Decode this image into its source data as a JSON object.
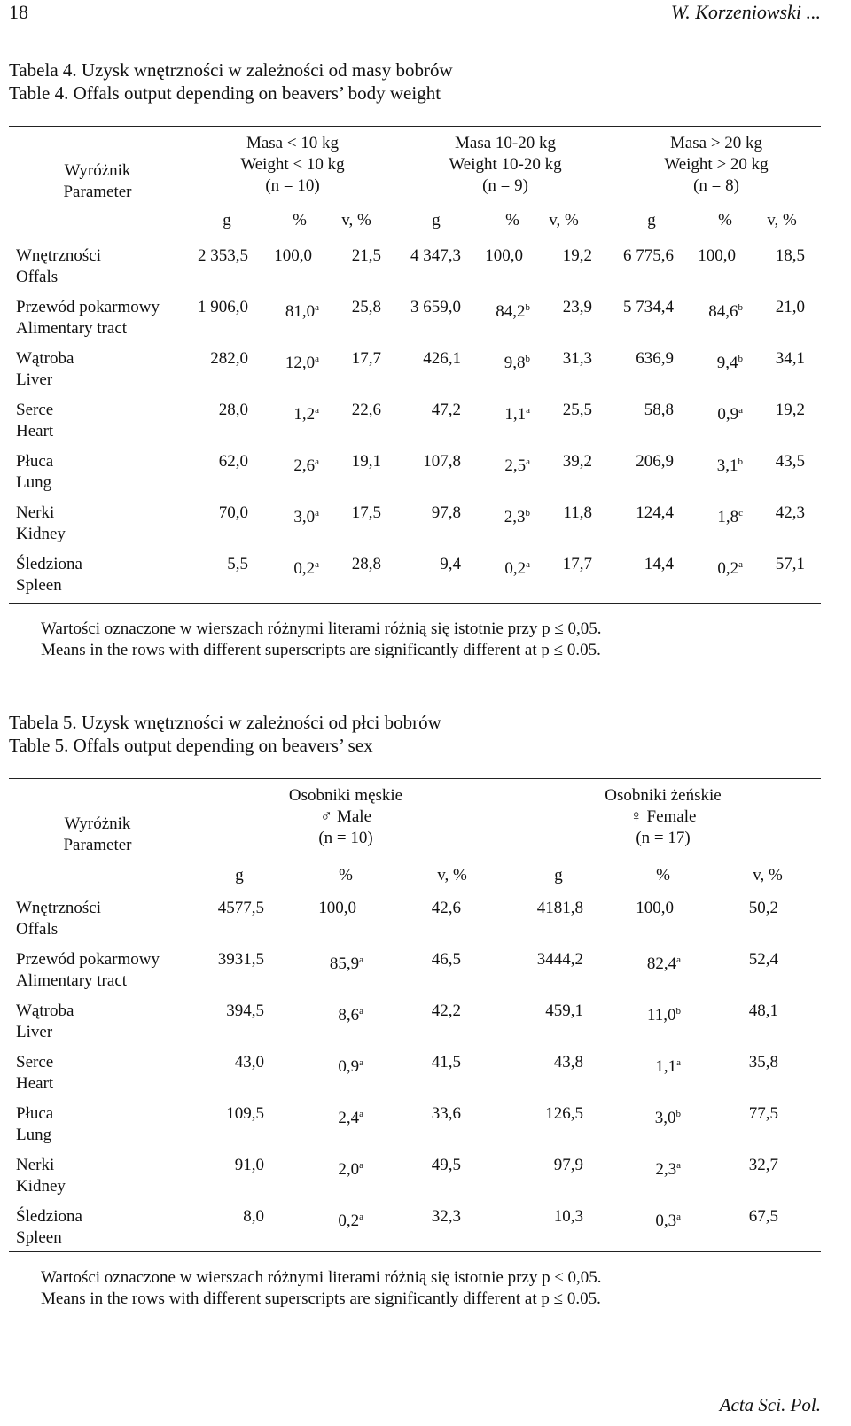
{
  "header": {
    "page_number": "18",
    "running_head": "W. Korzeniowski ..."
  },
  "table4": {
    "caption_pl": "Tabela 4. Uzysk wnętrzności w zależności od masy bobrów",
    "caption_en": "Table 4. Offals output depending on beavers’ body weight",
    "parameter": [
      "Wyróżnik",
      "Parameter"
    ],
    "groups": [
      [
        "Masa < 10 kg",
        "Weight < 10 kg",
        "(n = 10)"
      ],
      [
        "Masa 10-20 kg",
        "Weight 10-20 kg",
        "(n = 9)"
      ],
      [
        "Masa > 20 kg",
        "Weight > 20 kg",
        "(n = 8)"
      ]
    ],
    "subheaders": [
      "g",
      "%",
      "v, %",
      "g",
      "%",
      "v, %",
      "g",
      "%",
      "v, %"
    ],
    "rows": [
      {
        "label": [
          "Wnętrzności",
          "Offals"
        ],
        "cells": [
          "2 353,5",
          "100,0",
          "21,5",
          "4 347,3",
          "100,0",
          "19,2",
          "6 775,6",
          "100,0",
          "18,5"
        ]
      },
      {
        "label": [
          "Przewód pokarmowy",
          "Alimentary tract"
        ],
        "cells": [
          "1 906,0",
          {
            "text": "81,0",
            "sup": "a"
          },
          "25,8",
          "3 659,0",
          {
            "text": "84,2",
            "sup": "b"
          },
          "23,9",
          "5 734,4",
          {
            "text": "84,6",
            "sup": "b"
          },
          "21,0"
        ]
      },
      {
        "label": [
          "Wątroba",
          "Liver"
        ],
        "cells": [
          "282,0",
          {
            "text": "12,0",
            "sup": "a"
          },
          "17,7",
          "426,1",
          {
            "text": "9,8",
            "sup": "b"
          },
          "31,3",
          "636,9",
          {
            "text": "9,4",
            "sup": "b"
          },
          "34,1"
        ]
      },
      {
        "label": [
          "Serce",
          "Heart"
        ],
        "cells": [
          "28,0",
          {
            "text": "1,2",
            "sup": "a"
          },
          "22,6",
          "47,2",
          {
            "text": "1,1",
            "sup": "a"
          },
          "25,5",
          "58,8",
          {
            "text": "0,9",
            "sup": "a"
          },
          "19,2"
        ]
      },
      {
        "label": [
          "Płuca",
          "Lung"
        ],
        "cells": [
          "62,0",
          {
            "text": "2,6",
            "sup": "a"
          },
          "19,1",
          "107,8",
          {
            "text": "2,5",
            "sup": "a"
          },
          "39,2",
          "206,9",
          {
            "text": "3,1",
            "sup": "b"
          },
          "43,5"
        ]
      },
      {
        "label": [
          "Nerki",
          "Kidney"
        ],
        "cells": [
          "70,0",
          {
            "text": "3,0",
            "sup": "a"
          },
          "17,5",
          "97,8",
          {
            "text": "2,3",
            "sup": "b"
          },
          "11,8",
          "124,4",
          {
            "text": "1,8",
            "sup": "c"
          },
          "42,3"
        ]
      },
      {
        "label": [
          "Śledziona",
          "Spleen"
        ],
        "cells": [
          "5,5",
          {
            "text": "0,2",
            "sup": "a"
          },
          "28,8",
          "9,4",
          {
            "text": "0,2",
            "sup": "a"
          },
          "17,7",
          "14,4",
          {
            "text": "0,2",
            "sup": "a"
          },
          "57,1"
        ]
      }
    ],
    "notes": [
      "Wartości oznaczone w wierszach różnymi literami różnią się istotnie przy p ≤ 0,05.",
      "Means in the rows with different superscripts are significantly different at p ≤ 0.05."
    ]
  },
  "table5": {
    "caption_pl": "Tabela 5. Uzysk wnętrzności w zależności od płci bobrów",
    "caption_en": "Table 5. Offals output depending on beavers’ sex",
    "parameter": [
      "Wyróżnik",
      "Parameter"
    ],
    "groups": [
      [
        "Osobniki męskie",
        "♂ Male",
        "(n = 10)"
      ],
      [
        "Osobniki żeńskie",
        "♀ Female",
        "(n = 17)"
      ]
    ],
    "subheaders": [
      "g",
      "%",
      "v, %",
      "g",
      "%",
      "v, %"
    ],
    "rows": [
      {
        "label": [
          "Wnętrzności",
          "Offals"
        ],
        "cells": [
          "4577,5",
          "100,0",
          "42,6",
          "4181,8",
          "100,0",
          "50,2"
        ]
      },
      {
        "label": [
          "Przewód pokarmowy",
          "Alimentary tract"
        ],
        "cells": [
          "3931,5",
          {
            "text": "85,9",
            "sup": "a"
          },
          "46,5",
          "3444,2",
          {
            "text": "82,4",
            "sup": "a"
          },
          "52,4"
        ]
      },
      {
        "label": [
          "Wątroba",
          "Liver"
        ],
        "cells": [
          "394,5",
          {
            "text": "8,6",
            "sup": "a"
          },
          "42,2",
          "459,1",
          {
            "text": "11,0",
            "sup": "b"
          },
          "48,1"
        ]
      },
      {
        "label": [
          "Serce",
          "Heart"
        ],
        "cells": [
          "43,0",
          {
            "text": "0,9",
            "sup": "a"
          },
          "41,5",
          "43,8",
          {
            "text": "1,1",
            "sup": "a"
          },
          "35,8"
        ]
      },
      {
        "label": [
          "Płuca",
          "Lung"
        ],
        "cells": [
          "109,5",
          {
            "text": "2,4",
            "sup": "a"
          },
          "33,6",
          "126,5",
          {
            "text": "3,0",
            "sup": "b"
          },
          "77,5"
        ]
      },
      {
        "label": [
          "Nerki",
          "Kidney"
        ],
        "cells": [
          "91,0",
          {
            "text": "2,0",
            "sup": "a"
          },
          "49,5",
          "97,9",
          {
            "text": "2,3",
            "sup": "a"
          },
          "32,7"
        ]
      },
      {
        "label": [
          "Śledziona",
          "Spleen"
        ],
        "cells": [
          "8,0",
          {
            "text": "0,2",
            "sup": "a"
          },
          "32,3",
          "10,3",
          {
            "text": "0,3",
            "sup": "a"
          },
          "67,5"
        ]
      }
    ],
    "notes": [
      "Wartości oznaczone w wierszach różnymi literami różnią się istotnie przy p ≤ 0,05.",
      "Means in the rows with different superscripts are significantly different at p ≤ 0.05."
    ]
  },
  "footer": {
    "journal": "Acta Sci. Pol."
  }
}
